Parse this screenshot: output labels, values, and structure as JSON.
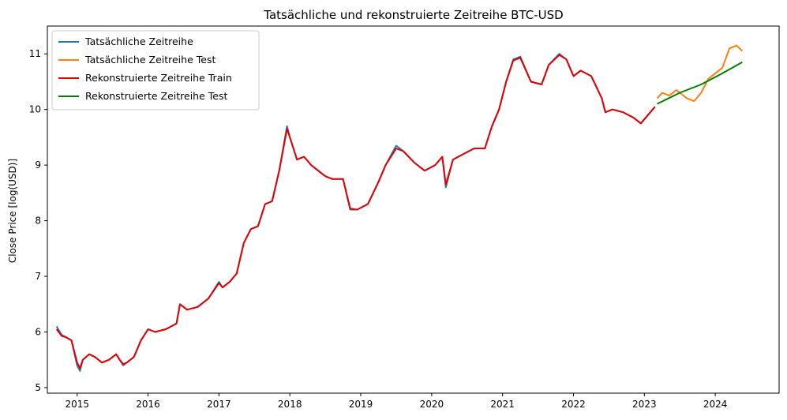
{
  "chart_data": {
    "type": "line",
    "title": "Tatsächliche und rekonstruierte Zeitreihe BTC-USD",
    "xlabel": "",
    "ylabel": "Close Price [log(USD)]",
    "xlim": [
      2014.58,
      2024.9
    ],
    "ylim": [
      4.9,
      11.5
    ],
    "x_ticks": [
      2015,
      2016,
      2017,
      2018,
      2019,
      2020,
      2021,
      2022,
      2023,
      2024
    ],
    "x_tick_labels": [
      "2015",
      "2016",
      "2017",
      "2018",
      "2019",
      "2020",
      "2021",
      "2022",
      "2023",
      "2024"
    ],
    "y_ticks": [
      5,
      6,
      7,
      8,
      9,
      10,
      11
    ],
    "y_tick_labels": [
      "5",
      "6",
      "7",
      "8",
      "9",
      "10",
      "11"
    ],
    "grid": false,
    "legend_position": "top-left",
    "series": [
      {
        "name": "Tatsächliche Zeitreihe",
        "color": "#1f77b4",
        "x": [
          2014.71,
          2014.78,
          2014.85,
          2014.92,
          2015.0,
          2015.04,
          2015.08,
          2015.17,
          2015.25,
          2015.35,
          2015.45,
          2015.55,
          2015.6,
          2015.65,
          2015.7,
          2015.8,
          2015.9,
          2016.0,
          2016.1,
          2016.25,
          2016.4,
          2016.45,
          2016.55,
          2016.7,
          2016.85,
          2017.0,
          2017.05,
          2017.15,
          2017.25,
          2017.35,
          2017.45,
          2017.55,
          2017.65,
          2017.75,
          2017.85,
          2017.96,
          2018.0,
          2018.1,
          2018.2,
          2018.3,
          2018.4,
          2018.5,
          2018.6,
          2018.75,
          2018.85,
          2018.95,
          2019.1,
          2019.25,
          2019.35,
          2019.5,
          2019.6,
          2019.75,
          2019.9,
          2020.05,
          2020.15,
          2020.2,
          2020.3,
          2020.45,
          2020.6,
          2020.75,
          2020.85,
          2020.95,
          2021.05,
          2021.15,
          2021.25,
          2021.4,
          2021.55,
          2021.65,
          2021.8,
          2021.9,
          2022.0,
          2022.1,
          2022.25,
          2022.4,
          2022.45,
          2022.55,
          2022.7,
          2022.85,
          2022.95,
          2023.05,
          2023.15
        ],
        "y": [
          6.1,
          5.95,
          5.9,
          5.85,
          5.4,
          5.3,
          5.5,
          5.6,
          5.55,
          5.45,
          5.5,
          5.6,
          5.5,
          5.4,
          5.45,
          5.55,
          5.85,
          6.05,
          6.0,
          6.05,
          6.15,
          6.5,
          6.4,
          6.45,
          6.6,
          6.9,
          6.8,
          6.9,
          7.05,
          7.6,
          7.85,
          7.9,
          8.3,
          8.35,
          8.9,
          9.7,
          9.5,
          9.1,
          9.15,
          9.0,
          8.9,
          8.8,
          8.75,
          8.75,
          8.2,
          8.2,
          8.3,
          8.7,
          9.0,
          9.35,
          9.25,
          9.05,
          8.9,
          9.0,
          9.15,
          8.6,
          9.1,
          9.2,
          9.3,
          9.3,
          9.7,
          10.0,
          10.5,
          10.9,
          10.95,
          10.5,
          10.45,
          10.8,
          11.0,
          10.9,
          10.6,
          10.7,
          10.6,
          10.2,
          9.95,
          10.0,
          9.95,
          9.85,
          9.75,
          9.9,
          10.05
        ]
      },
      {
        "name": "Tatsächliche Zeitreihe Test",
        "color": "#ff7f0e",
        "x": [
          2023.18,
          2023.25,
          2023.35,
          2023.45,
          2023.5,
          2023.6,
          2023.7,
          2023.8,
          2023.9,
          2024.0,
          2024.1,
          2024.2,
          2024.3,
          2024.38
        ],
        "y": [
          10.2,
          10.3,
          10.25,
          10.35,
          10.3,
          10.2,
          10.15,
          10.3,
          10.55,
          10.65,
          10.75,
          11.1,
          11.15,
          11.05
        ]
      },
      {
        "name": "Rekonstruierte Zeitreihe Train",
        "color": "#e60000",
        "x": [
          2014.71,
          2014.78,
          2014.85,
          2014.92,
          2015.0,
          2015.04,
          2015.08,
          2015.17,
          2015.25,
          2015.35,
          2015.45,
          2015.55,
          2015.6,
          2015.65,
          2015.7,
          2015.8,
          2015.9,
          2016.0,
          2016.1,
          2016.25,
          2016.4,
          2016.45,
          2016.55,
          2016.7,
          2016.85,
          2017.0,
          2017.05,
          2017.15,
          2017.25,
          2017.35,
          2017.45,
          2017.55,
          2017.65,
          2017.75,
          2017.85,
          2017.96,
          2018.0,
          2018.1,
          2018.2,
          2018.3,
          2018.4,
          2018.5,
          2018.6,
          2018.75,
          2018.85,
          2018.95,
          2019.1,
          2019.25,
          2019.35,
          2019.5,
          2019.6,
          2019.75,
          2019.9,
          2020.05,
          2020.15,
          2020.2,
          2020.3,
          2020.45,
          2020.6,
          2020.75,
          2020.85,
          2020.95,
          2021.05,
          2021.15,
          2021.25,
          2021.4,
          2021.55,
          2021.65,
          2021.8,
          2021.9,
          2022.0,
          2022.1,
          2022.25,
          2022.4,
          2022.45,
          2022.55,
          2022.7,
          2022.85,
          2022.95,
          2023.05,
          2023.15
        ],
        "y": [
          6.05,
          5.93,
          5.9,
          5.85,
          5.45,
          5.35,
          5.5,
          5.6,
          5.55,
          5.45,
          5.5,
          5.6,
          5.5,
          5.42,
          5.45,
          5.55,
          5.85,
          6.05,
          6.0,
          6.05,
          6.15,
          6.5,
          6.4,
          6.45,
          6.6,
          6.88,
          6.8,
          6.9,
          7.05,
          7.6,
          7.85,
          7.9,
          8.3,
          8.35,
          8.9,
          9.65,
          9.5,
          9.1,
          9.15,
          9.0,
          8.9,
          8.8,
          8.75,
          8.75,
          8.22,
          8.2,
          8.3,
          8.7,
          9.0,
          9.3,
          9.25,
          9.05,
          8.9,
          9.0,
          9.15,
          8.65,
          9.1,
          9.2,
          9.3,
          9.3,
          9.7,
          10.0,
          10.5,
          10.88,
          10.93,
          10.5,
          10.45,
          10.8,
          10.98,
          10.9,
          10.6,
          10.7,
          10.6,
          10.2,
          9.95,
          10.0,
          9.95,
          9.85,
          9.75,
          9.9,
          10.05
        ]
      },
      {
        "name": "Rekonstruierte Zeitreihe Test",
        "color": "#008000",
        "x": [
          2023.18,
          2023.5,
          2023.8,
          2024.1,
          2024.38
        ],
        "y": [
          10.1,
          10.3,
          10.45,
          10.65,
          10.85
        ]
      }
    ]
  }
}
